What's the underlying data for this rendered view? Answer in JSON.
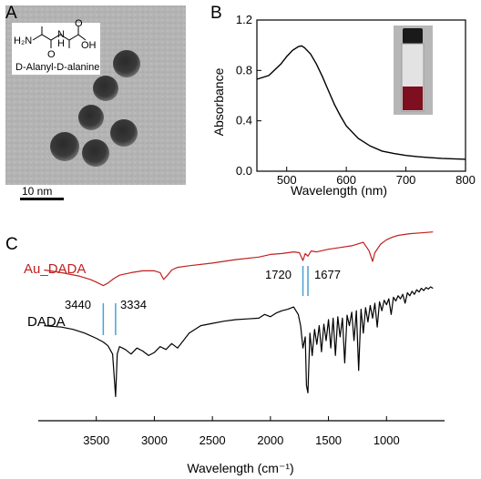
{
  "panels": {
    "a": "A",
    "b": "B",
    "c": "C"
  },
  "panel_a": {
    "molecule_label": "D-Alanyl-D-alanine",
    "scale_bar": "10 nm",
    "atoms": {
      "h2n": "H₂N",
      "nh": "N",
      "h": "H",
      "oh": "OH",
      "o1": "O",
      "o2": "O"
    }
  },
  "chart_data": [
    {
      "type": "line",
      "panel": "B",
      "xlabel": "Wavelength (nm)",
      "ylabel": "Absorbance",
      "xlim": [
        450,
        800
      ],
      "ylim": [
        0,
        1.2
      ],
      "x_ticks": [
        "500",
        "600",
        "700",
        "800"
      ],
      "y_ticks": [
        "0.0",
        "0.4",
        "0.8",
        "1.2"
      ],
      "series": [
        {
          "color": "#000000",
          "x": [
            450,
            470,
            490,
            500,
            510,
            520,
            525,
            530,
            540,
            550,
            560,
            570,
            580,
            590,
            600,
            620,
            640,
            660,
            680,
            700,
            720,
            740,
            760,
            780,
            800
          ],
          "y": [
            0.73,
            0.76,
            0.85,
            0.91,
            0.96,
            0.99,
            0.995,
            0.98,
            0.93,
            0.85,
            0.75,
            0.64,
            0.53,
            0.44,
            0.36,
            0.26,
            0.2,
            0.16,
            0.14,
            0.125,
            0.115,
            0.108,
            0.102,
            0.098,
            0.095
          ]
        }
      ],
      "inset": "vial photograph"
    },
    {
      "type": "line",
      "panel": "C",
      "xlabel": "Wavelength (cm⁻¹)",
      "xlim": [
        4000,
        500
      ],
      "x_ticks": [
        "3500",
        "3000",
        "2500",
        "2000",
        "1500",
        "1000"
      ],
      "series": [
        {
          "name": "Au_DADA",
          "color": "#c0201f",
          "x": [
            3950,
            3800,
            3650,
            3550,
            3500,
            3440,
            3400,
            3350,
            3300,
            3200,
            3100,
            3000,
            2950,
            2920,
            2880,
            2850,
            2800,
            2700,
            2500,
            2300,
            2100,
            2000,
            1900,
            1800,
            1750,
            1720,
            1700,
            1677,
            1650,
            1600,
            1500,
            1400,
            1300,
            1200,
            1150,
            1120,
            1100,
            1050,
            1000,
            950,
            900,
            800,
            700,
            600
          ],
          "y": [
            30,
            33,
            37,
            41,
            44,
            48,
            45,
            40,
            36,
            33,
            31,
            31,
            33,
            41,
            35,
            30,
            27,
            25,
            22,
            18,
            15,
            12,
            11,
            9,
            10,
            19,
            11,
            14,
            8,
            9,
            6,
            4,
            2,
            -2,
            8,
            20,
            10,
            0,
            -5,
            -8,
            -10,
            -12,
            -13,
            -14
          ]
        },
        {
          "name": "DADA",
          "color": "#000000",
          "x": [
            3950,
            3800,
            3700,
            3600,
            3500,
            3440,
            3400,
            3360,
            3334,
            3320,
            3300,
            3250,
            3200,
            3150,
            3100,
            3050,
            3000,
            2950,
            2900,
            2850,
            2800,
            2700,
            2600,
            2500,
            2400,
            2300,
            2200,
            2100,
            2050,
            2000,
            1950,
            1900,
            1850,
            1800,
            1760,
            1740,
            1720,
            1700,
            1690,
            1677,
            1660,
            1640,
            1620,
            1600,
            1580,
            1560,
            1540,
            1520,
            1500,
            1480,
            1460,
            1440,
            1420,
            1400,
            1380,
            1360,
            1340,
            1320,
            1300,
            1280,
            1260,
            1240,
            1220,
            1200,
            1180,
            1160,
            1140,
            1120,
            1100,
            1080,
            1060,
            1040,
            1020,
            1000,
            980,
            960,
            940,
            920,
            900,
            880,
            860,
            840,
            820,
            800,
            780,
            760,
            740,
            720,
            700,
            680,
            660,
            640,
            620,
            600
          ],
          "y": [
            80,
            82,
            85,
            90,
            97,
            102,
            107,
            118,
            175,
            118,
            108,
            112,
            118,
            110,
            114,
            120,
            116,
            108,
            112,
            104,
            110,
            90,
            80,
            77,
            74,
            72,
            71,
            70,
            65,
            68,
            63,
            60,
            58,
            55,
            65,
            80,
            110,
            95,
            160,
            170,
            90,
            120,
            85,
            105,
            80,
            115,
            78,
            100,
            72,
            110,
            70,
            120,
            68,
            95,
            70,
            130,
            66,
            80,
            62,
            100,
            60,
            140,
            58,
            90,
            56,
            75,
            53,
            70,
            50,
            82,
            48,
            60,
            46,
            52,
            44,
            65,
            42,
            47,
            40,
            44,
            38,
            50,
            36,
            40,
            34,
            38,
            32,
            35,
            30,
            33,
            29,
            31,
            28,
            30
          ]
        }
      ],
      "annotations": {
        "a3440": "3440",
        "a3334": "3334",
        "a1720": "1720",
        "a1677": "1677"
      },
      "marker_color": "#4d9fd6"
    }
  ]
}
